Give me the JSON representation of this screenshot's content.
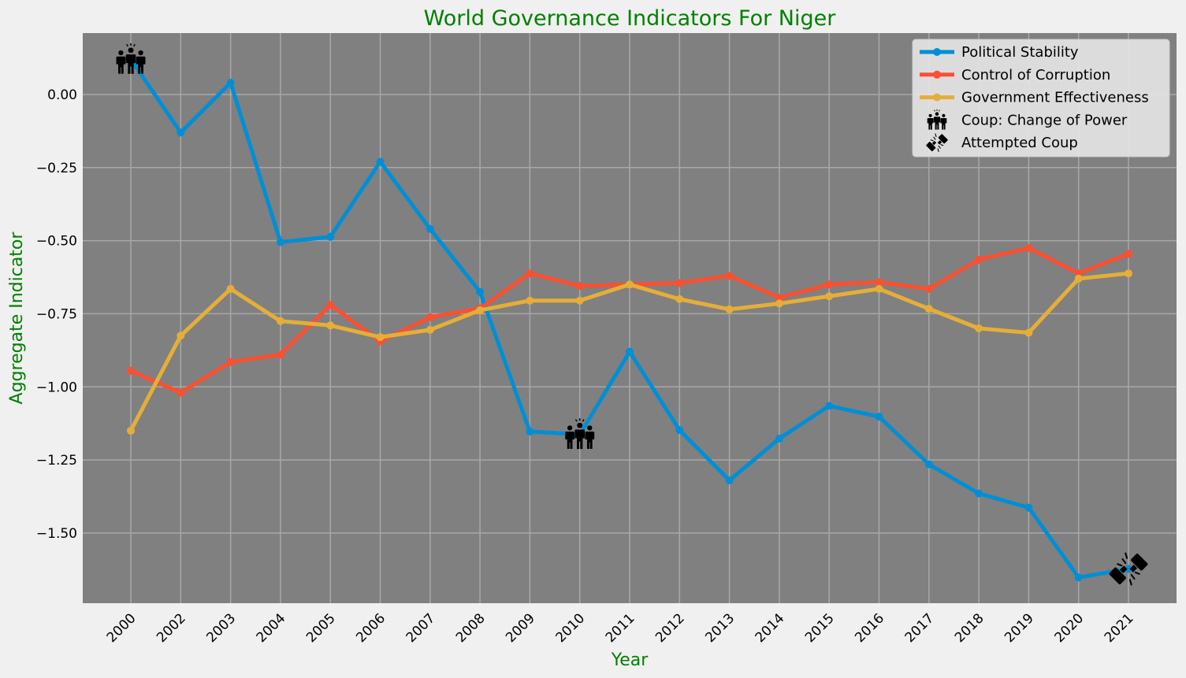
{
  "chart_data": {
    "type": "line",
    "title": "World Governance Indicators For Niger",
    "xlabel": "Year",
    "ylabel": "Aggregate Indicator",
    "categories": [
      "2000",
      "2002",
      "2003",
      "2004",
      "2005",
      "2006",
      "2007",
      "2008",
      "2009",
      "2010",
      "2011",
      "2012",
      "2013",
      "2014",
      "2015",
      "2016",
      "2017",
      "2018",
      "2019",
      "2020",
      "2021"
    ],
    "ylim": [
      -1.74,
      0.21
    ],
    "yticks": [
      0.0,
      -0.25,
      -0.5,
      -0.75,
      -1.0,
      -1.25,
      -1.5
    ],
    "ytick_labels": [
      "0.00",
      "−0.25",
      "−0.50",
      "−0.75",
      "−1.00",
      "−1.25",
      "−1.50"
    ],
    "grid": true,
    "legend_position": "top-right",
    "series": [
      {
        "name": "Political Stability",
        "color": "#008fd5",
        "values": [
          0.12,
          -0.13,
          0.04,
          -0.505,
          -0.487,
          -0.23,
          -0.46,
          -0.675,
          -1.153,
          -1.163,
          -0.88,
          -1.148,
          -1.32,
          -1.177,
          -1.065,
          -1.102,
          -1.265,
          -1.365,
          -1.413,
          -1.652,
          -1.623
        ]
      },
      {
        "name": "Control of Corruption",
        "color": "#fc4f30",
        "values": [
          -0.945,
          -1.02,
          -0.915,
          -0.89,
          -0.72,
          -0.845,
          -0.762,
          -0.732,
          -0.612,
          -0.655,
          -0.65,
          -0.645,
          -0.62,
          -0.695,
          -0.65,
          -0.642,
          -0.665,
          -0.565,
          -0.525,
          -0.612,
          -0.545
        ]
      },
      {
        "name": "Government Effectiveness",
        "color": "#e5ae38",
        "values": [
          -1.15,
          -0.825,
          -0.665,
          -0.775,
          -0.79,
          -0.83,
          -0.805,
          -0.738,
          -0.705,
          -0.705,
          -0.65,
          -0.7,
          -0.735,
          -0.715,
          -0.69,
          -0.665,
          -0.733,
          -0.8,
          -0.815,
          -0.63,
          -0.612
        ]
      }
    ],
    "markers": [
      {
        "name": "Coup: Change of Power",
        "icon": "coup-change-of-power-icon",
        "points": [
          {
            "x": "2000",
            "y": 0.12
          },
          {
            "x": "2010",
            "y": -1.163
          }
        ]
      },
      {
        "name": "Attempted Coup",
        "icon": "attempted-coup-icon",
        "points": [
          {
            "x": "2021",
            "y": -1.623
          }
        ]
      }
    ],
    "colors": {
      "plot_background": "#808080",
      "figure_background": "#f0f0f0",
      "title": "#008000",
      "axis_title": "#008000",
      "grid": "#a8a8a8"
    }
  }
}
